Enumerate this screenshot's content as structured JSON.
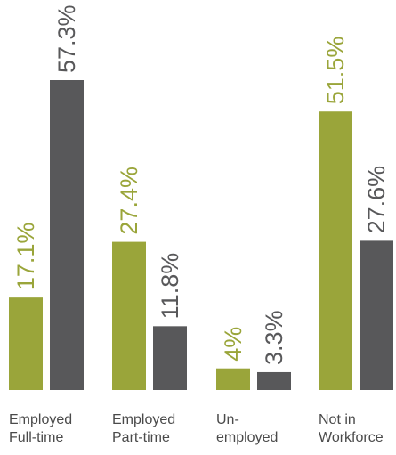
{
  "chart_data": {
    "type": "bar",
    "categories": [
      [
        "Employed",
        "Full-time"
      ],
      [
        "Employed",
        "Part-time"
      ],
      [
        "Un-",
        "employed"
      ],
      [
        "Not in",
        "Workforce"
      ]
    ],
    "series": [
      {
        "values": [
          17.1,
          27.4,
          4,
          51.5
        ],
        "value_labels": [
          "17.1%",
          "27.4%",
          "4%",
          "51.5%"
        ],
        "color": "#9aa53a"
      },
      {
        "values": [
          57.3,
          11.8,
          3.3,
          27.6
        ],
        "value_labels": [
          "57.3%",
          "11.8%",
          "3.3%",
          "27.6%"
        ],
        "color": "#58585a"
      }
    ],
    "title": "",
    "xlabel": "",
    "ylabel": "",
    "ylim": [
      0,
      60
    ],
    "grid": false,
    "legend": "none"
  }
}
